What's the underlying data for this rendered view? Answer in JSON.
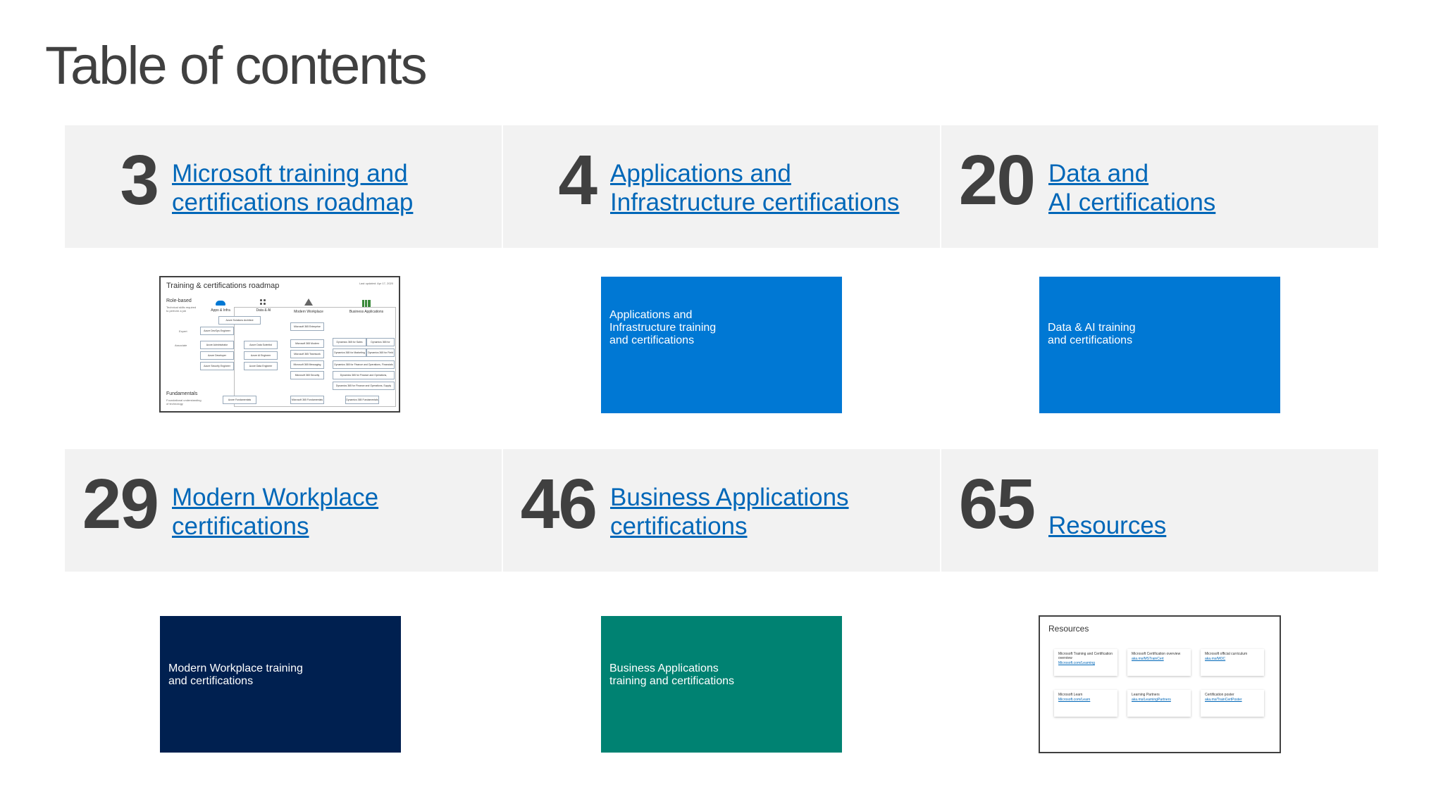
{
  "page": {
    "title": "Table of contents"
  },
  "sections": [
    {
      "number": "3",
      "line1": "Microsoft training and",
      "line2": "certifications roadmap"
    },
    {
      "number": "4",
      "line1": "Applications and",
      "line2": "Infrastructure certifications"
    },
    {
      "number": "20",
      "line1": "Data and",
      "line2": "AI certifications"
    },
    {
      "number": "29",
      "line1": "Modern Workplace",
      "line2": "certifications"
    },
    {
      "number": "46",
      "line1": "Business Applications",
      "line2": "certifications"
    },
    {
      "number": "65",
      "line1": "Resources",
      "line2": ""
    }
  ],
  "thumbnails": {
    "roadmap": {
      "title": "Training & certifications roadmap",
      "date": "Last updated: Apr 17, 2020",
      "role_based": "Role-based",
      "role_based_desc": "Technical skills required to perform a job",
      "expert": "Expert",
      "associate": "Associate",
      "fundamentals": "Fundamentals",
      "fundamentals_desc": "Foundational understanding of technology",
      "columns": [
        "Apps & Infra",
        "Data & AI",
        "Modern Workplace",
        "Business Applications"
      ],
      "boxes": {
        "solutions_architect": "Azure Solutions Architect",
        "devops": "Azure DevOps Engineer",
        "m365_enterprise": "Microsoft 365 Enterprise Administrator",
        "azure_admin": "Azure Administrator",
        "azure_dev": "Azure Developer",
        "azure_security": "Azure Security Engineer",
        "data_scientist": "Azure Data Scientist",
        "ai_engineer": "Azure AI Engineer",
        "data_engineer": "Azure Data Engineer",
        "m365_desktop": "Microsoft 365 Modern Desktop Administrator",
        "m365_teamwork": "Microsoft 365 Teamwork Administrator",
        "m365_messaging": "Microsoft 365 Messaging Administrator",
        "m365_security": "Microsoft 365 Security Administrator",
        "d365_sales": "Dynamics 365 for Sales Functional Consultant",
        "d365_cs": "Dynamics 365 for Customer Service Functional Consultant",
        "d365_marketing": "Dynamics 365 for Marketing Functional Consultant",
        "d365_field": "Dynamics 365 for Field Service Functional Consultant",
        "d365_finance": "Dynamics 365 for Finance and Operations, Financials Functional Consultant",
        "d365_mfg": "Dynamics 365 for Finance and Operations, Manufacturing Functional Consultant",
        "d365_scm": "Dynamics 365 for Finance and Operations, Supply Chain Management Functional Consultant",
        "azure_fund": "Azure Fundamentals",
        "m365_fund": "Microsoft 365 Fundamentals",
        "d365_fund": "Dynamics 365 Fundamentals"
      }
    },
    "apps_infra": {
      "line1": "Applications and",
      "line2": "Infrastructure training",
      "line3": "and certifications"
    },
    "data_ai": {
      "line1": "Data & AI training",
      "line2": "and certifications"
    },
    "modern_workplace": {
      "line1": "Modern Workplace training",
      "line2": "and certifications"
    },
    "business_apps": {
      "line1": "Business Applications",
      "line2": "training and certifications"
    },
    "resources": {
      "title": "Resources",
      "cards": [
        {
          "label": "Microsoft Training and Certification overview",
          "url": "Microsoft.com/Learning"
        },
        {
          "label": "Microsoft Certification overview",
          "url": "aka.ms/MSTrainCert"
        },
        {
          "label": "Microsoft official curriculum",
          "url": "aka.ms/MOC"
        },
        {
          "label": "Microsoft Learn",
          "url": "Microsoft.com/Learn"
        },
        {
          "label": "Learning Partners",
          "url": "aka.ms/LearningPartners"
        },
        {
          "label": "Certification poster",
          "url": "aka.ms/TrainCertPoster"
        }
      ]
    }
  },
  "colors": {
    "link": "#0067b8",
    "band": "#f2f2f2",
    "blue": "#0078d4",
    "navy": "#002050",
    "teal": "#008272",
    "text": "#404040"
  }
}
